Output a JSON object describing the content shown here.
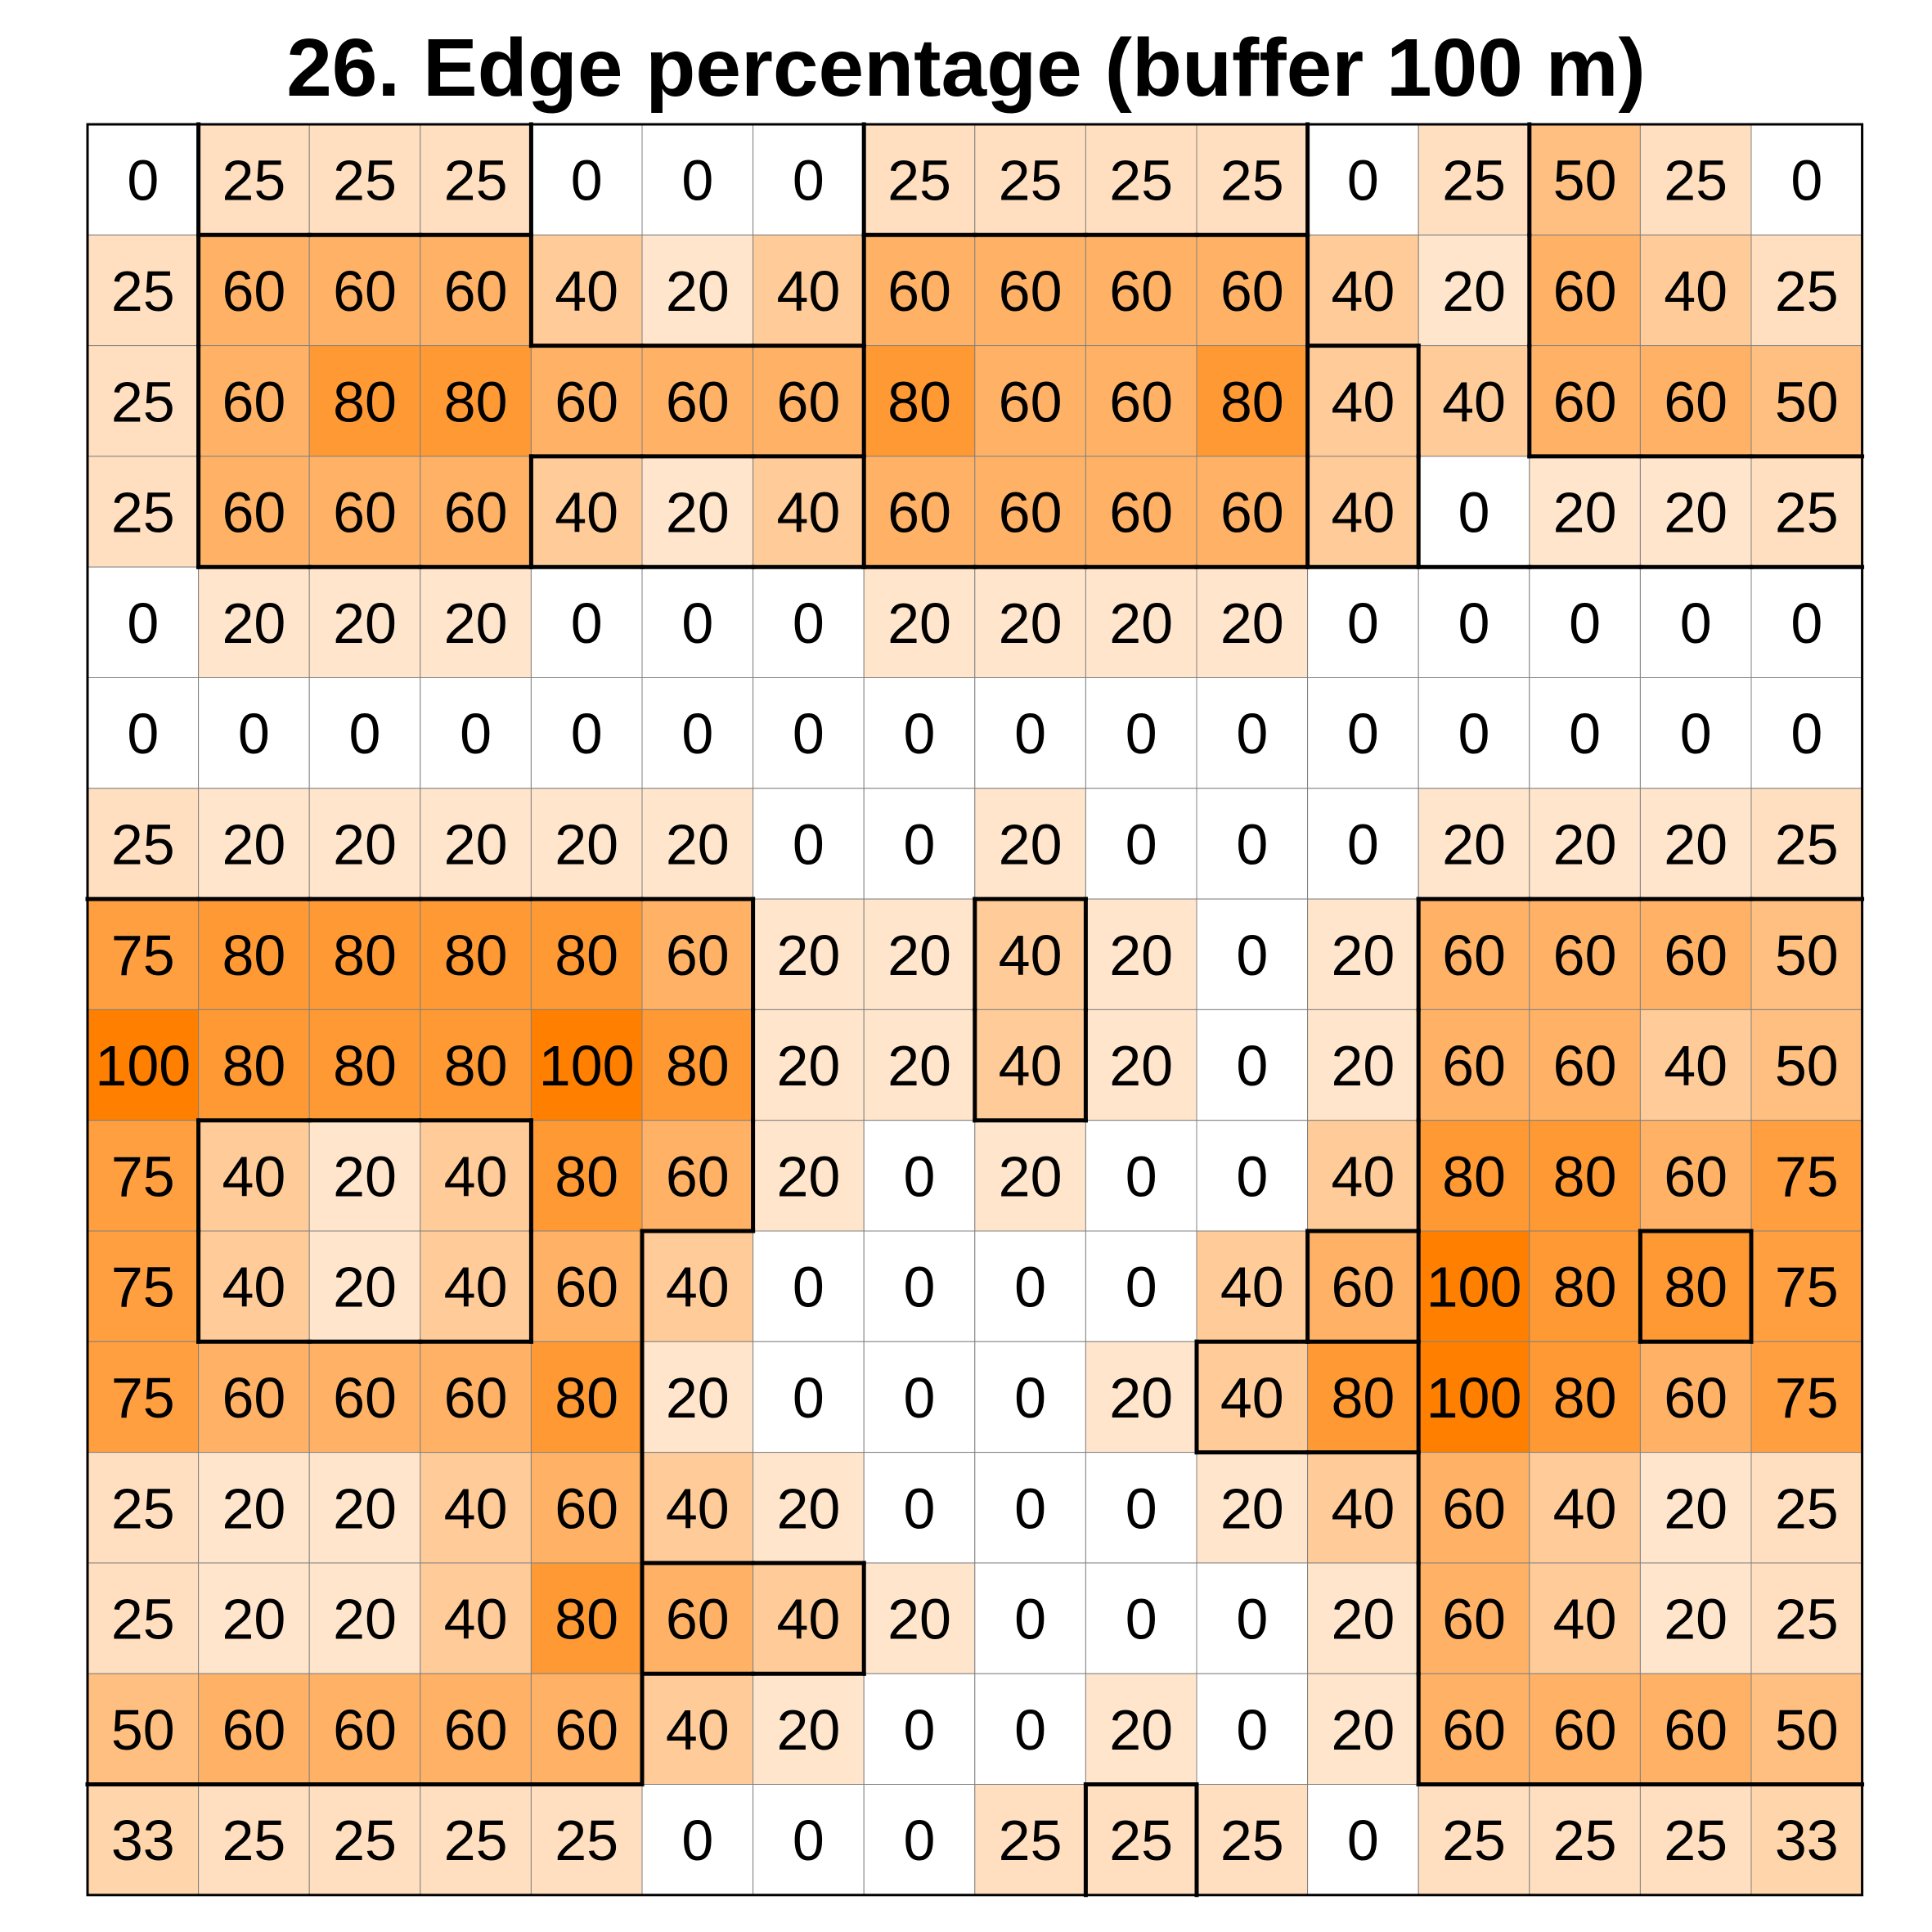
{
  "chart_data": {
    "type": "heatmap",
    "title": "26. Edge percentage (buffer 100 m)",
    "rows": 16,
    "cols": 16,
    "values": [
      [
        0,
        25,
        25,
        25,
        0,
        0,
        0,
        25,
        25,
        25,
        25,
        0,
        25,
        50,
        25,
        0
      ],
      [
        25,
        60,
        60,
        60,
        40,
        20,
        40,
        60,
        60,
        60,
        60,
        40,
        20,
        60,
        40,
        25
      ],
      [
        25,
        60,
        80,
        80,
        60,
        60,
        60,
        80,
        60,
        60,
        80,
        40,
        40,
        60,
        60,
        50
      ],
      [
        25,
        60,
        60,
        60,
        40,
        20,
        40,
        60,
        60,
        60,
        60,
        40,
        0,
        20,
        20,
        25
      ],
      [
        0,
        20,
        20,
        20,
        0,
        0,
        0,
        20,
        20,
        20,
        20,
        0,
        0,
        0,
        0,
        0
      ],
      [
        0,
        0,
        0,
        0,
        0,
        0,
        0,
        0,
        0,
        0,
        0,
        0,
        0,
        0,
        0,
        0
      ],
      [
        25,
        20,
        20,
        20,
        20,
        20,
        0,
        0,
        20,
        0,
        0,
        0,
        20,
        20,
        20,
        25
      ],
      [
        75,
        80,
        80,
        80,
        80,
        60,
        20,
        20,
        40,
        20,
        0,
        20,
        60,
        60,
        60,
        50
      ],
      [
        100,
        80,
        80,
        80,
        100,
        80,
        20,
        20,
        40,
        20,
        0,
        20,
        60,
        60,
        40,
        50
      ],
      [
        75,
        40,
        20,
        40,
        80,
        60,
        20,
        0,
        20,
        0,
        0,
        40,
        80,
        80,
        60,
        75
      ],
      [
        75,
        40,
        20,
        40,
        60,
        40,
        0,
        0,
        0,
        0,
        40,
        60,
        100,
        80,
        80,
        75
      ],
      [
        75,
        60,
        60,
        60,
        80,
        20,
        0,
        0,
        0,
        20,
        40,
        80,
        100,
        80,
        60,
        75
      ],
      [
        25,
        20,
        20,
        40,
        60,
        40,
        20,
        0,
        0,
        0,
        20,
        40,
        60,
        40,
        20,
        25
      ],
      [
        25,
        20,
        20,
        40,
        80,
        60,
        40,
        20,
        0,
        0,
        0,
        20,
        60,
        40,
        20,
        25
      ],
      [
        50,
        60,
        60,
        60,
        60,
        40,
        20,
        0,
        0,
        20,
        0,
        20,
        60,
        60,
        60,
        50
      ],
      [
        33,
        25,
        25,
        25,
        25,
        0,
        0,
        0,
        25,
        25,
        25,
        0,
        25,
        25,
        25,
        33
      ]
    ],
    "regions": [
      [
        0,
        1,
        1,
        1,
        2,
        2,
        2,
        3,
        3,
        3,
        3,
        4,
        4,
        5,
        5,
        5
      ],
      [
        0,
        6,
        6,
        6,
        2,
        2,
        2,
        7,
        7,
        7,
        7,
        4,
        4,
        5,
        5,
        5
      ],
      [
        0,
        6,
        6,
        6,
        6,
        6,
        6,
        7,
        7,
        7,
        7,
        8,
        4,
        5,
        5,
        5
      ],
      [
        0,
        6,
        6,
        6,
        9,
        9,
        9,
        7,
        7,
        7,
        7,
        8,
        4,
        4,
        4,
        4
      ],
      [
        0,
        0,
        0,
        0,
        0,
        0,
        0,
        0,
        0,
        0,
        0,
        0,
        0,
        0,
        0,
        0
      ],
      [
        0,
        0,
        0,
        0,
        0,
        0,
        0,
        0,
        0,
        0,
        0,
        0,
        0,
        0,
        0,
        0
      ],
      [
        0,
        0,
        0,
        0,
        0,
        0,
        0,
        0,
        0,
        0,
        0,
        0,
        0,
        0,
        0,
        0
      ],
      [
        10,
        10,
        10,
        10,
        10,
        10,
        0,
        0,
        11,
        0,
        0,
        0,
        12,
        12,
        12,
        12
      ],
      [
        10,
        10,
        10,
        10,
        10,
        10,
        0,
        0,
        11,
        0,
        0,
        0,
        12,
        12,
        12,
        12
      ],
      [
        10,
        13,
        13,
        13,
        10,
        10,
        0,
        0,
        0,
        0,
        0,
        0,
        12,
        12,
        12,
        12
      ],
      [
        10,
        13,
        13,
        13,
        10,
        0,
        0,
        0,
        0,
        0,
        0,
        14,
        12,
        12,
        15,
        12
      ],
      [
        10,
        10,
        10,
        10,
        10,
        0,
        0,
        0,
        0,
        0,
        16,
        16,
        12,
        12,
        12,
        12
      ],
      [
        10,
        10,
        10,
        10,
        10,
        0,
        0,
        0,
        0,
        0,
        0,
        0,
        12,
        12,
        12,
        12
      ],
      [
        10,
        10,
        10,
        10,
        10,
        17,
        17,
        0,
        0,
        0,
        0,
        0,
        12,
        12,
        12,
        12
      ],
      [
        10,
        10,
        10,
        10,
        10,
        0,
        0,
        0,
        0,
        0,
        0,
        0,
        12,
        12,
        12,
        12
      ],
      [
        0,
        0,
        0,
        0,
        0,
        0,
        0,
        0,
        0,
        18,
        0,
        0,
        0,
        0,
        0,
        0
      ]
    ],
    "color_scale": {
      "min_color": "#ffffff",
      "max_color": "#ff7f00",
      "min": 0,
      "max": 100
    },
    "grid_color": "#808080",
    "border_color": "#000000"
  }
}
